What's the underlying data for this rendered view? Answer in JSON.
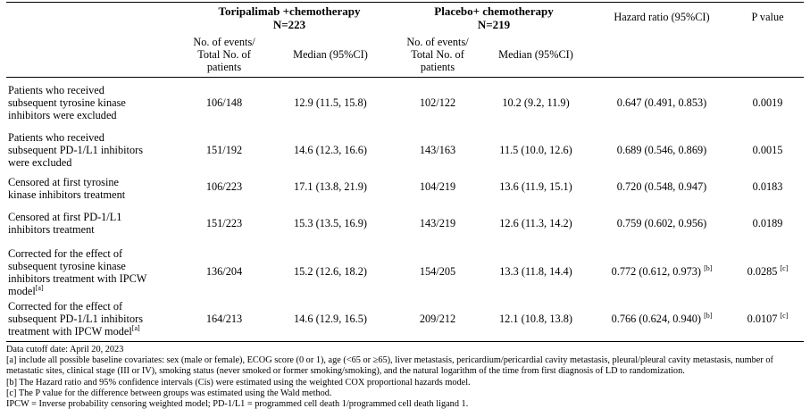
{
  "header": {
    "group1": "Toripalimab +chemotherapy",
    "group1_n": "N=223",
    "group2": "Placebo+ chemotherapy",
    "group2_n": "N=219",
    "hr": "Hazard ratio (95%CI)",
    "p": "P value",
    "events_line1": "No. of events/",
    "events_line2": "Total No. of",
    "events_line3": "patients",
    "median": "Median (95%CI)"
  },
  "rows": [
    {
      "label": [
        "Patients who received",
        "subsequent tyrosine kinase",
        "inhibitors were excluded"
      ],
      "t_events": "106/148",
      "t_median": "12.9 (11.5, 15.8)",
      "p_events": "102/122",
      "p_median": "10.2 (9.2, 11.9)",
      "hr": "0.647 (0.491, 0.853)",
      "hr_sup": "",
      "p": "0.0019",
      "p_sup": ""
    },
    {
      "label": [
        "Patients who received",
        "subsequent PD-1/L1 inhibitors",
        "were excluded"
      ],
      "t_events": "151/192",
      "t_median": "14.6 (12.3, 16.6)",
      "p_events": "143/163",
      "p_median": "11.5 (10.0, 12.6)",
      "hr": "0.689 (0.546, 0.869)",
      "hr_sup": "",
      "p": "0.0015",
      "p_sup": ""
    },
    {
      "label": [
        "Censored at first tyrosine",
        "kinase inhibitors treatment"
      ],
      "t_events": "106/223",
      "t_median": "17.1 (13.8, 21.9)",
      "p_events": "104/219",
      "p_median": "13.6 (11.9, 15.1)",
      "hr": "0.720 (0.548, 0.947)",
      "hr_sup": "",
      "p": "0.0183",
      "p_sup": ""
    },
    {
      "label": [
        "Censored at first PD-1/L1",
        "inhibitors treatment"
      ],
      "t_events": "151/223",
      "t_median": "15.3 (13.5, 16.9)",
      "p_events": "143/219",
      "p_median": "12.6 (11.3, 14.2)",
      "hr": "0.759 (0.602, 0.956)",
      "hr_sup": "",
      "p": "0.0189",
      "p_sup": ""
    },
    {
      "label": [
        "Corrected for the effect of",
        "subsequent tyrosine kinase",
        "inhibitors treatment with IPCW",
        "model"
      ],
      "label_sup": "[a]",
      "t_events": "136/204",
      "t_median": "15.2 (12.6, 18.2)",
      "p_events": "154/205",
      "p_median": "13.3 (11.8, 14.4)",
      "hr": "0.772 (0.612, 0.973)",
      "hr_sup": "[b]",
      "p": "0.0285",
      "p_sup": "[c]"
    },
    {
      "label": [
        "Corrected for the effect of",
        "subsequent PD-1/L1 inhibitors",
        "treatment with IPCW model"
      ],
      "label_sup": "[a]",
      "t_events": "164/213",
      "t_median": "14.6 (12.9, 16.5)",
      "p_events": "209/212",
      "p_median": "12.1 (10.8, 13.8)",
      "hr": "0.766 (0.624, 0.940)",
      "hr_sup": "[b]",
      "p": "0.0107",
      "p_sup": "[c]"
    }
  ],
  "notes": {
    "cutoff": "Data cutoff date: April 20, 2023",
    "a": "[a] include all possible baseline covariates: sex (male or female), ECOG score (0 or 1), age (<65 or ≥65), liver metastasis, pericardium/pericardial cavity metastasis, pleural/pleural cavity metastasis, number of metastatic sites, clinical stage (III or IV), smoking status (never smoked or former smoking/smoking), and the natural logarithm of the time from first diagnosis of LD to randomization.",
    "b": "[b] The Hazard ratio and 95% confidence intervals (Cis) were estimated using the weighted COX proportional hazards model.",
    "c": "[c] The P value for the difference between groups was estimated using the Wald method.",
    "abbr": "IPCW = Inverse probability censoring weighted model; PD-1/L1 = programmed cell death 1/programmed cell death ligand 1."
  }
}
